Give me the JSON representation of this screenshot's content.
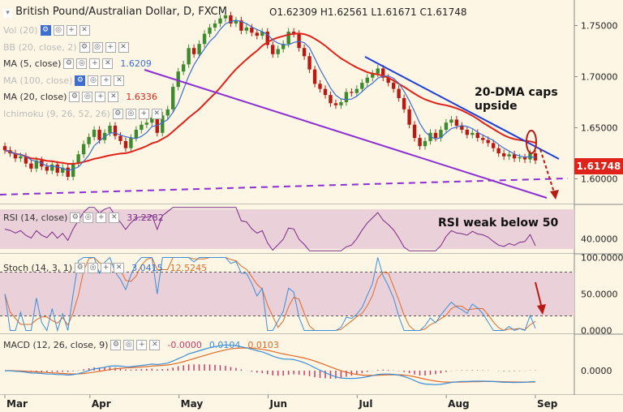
{
  "header": {
    "title": "British Pound/Australian Dollar, D, FXCM",
    "ohlc": "O1.62309  H1.62561  L1.61671  C1.61748"
  },
  "indicators": {
    "vol": {
      "label": "Vol (20)"
    },
    "bb": {
      "label": "BB (20, close, 2)"
    },
    "ma5": {
      "label": "MA (5, close)",
      "value": "1.6209"
    },
    "ma100": {
      "label": "MA (100, close)"
    },
    "ma20": {
      "label": "MA (20, close)",
      "value": "1.6336"
    },
    "ichimoku": {
      "label": "Ichimoku (9, 26, 52, 26)"
    },
    "rsi": {
      "label": "RSI (14, close)",
      "value": "33.2282"
    },
    "stoch": {
      "label": "Stoch (14, 3, 1)",
      "value1": "3.0415",
      "value2": "12.5245"
    },
    "macd": {
      "label": "MACD (12, 26, close, 9)",
      "value1": "-0.0000",
      "value2": "0.0104",
      "value3": "0.0103"
    }
  },
  "annotations": {
    "dma": "20-DMA caps\nupside",
    "rsi": "RSI weak below 50"
  },
  "last_price": "1.61748",
  "colors": {
    "background": "#fdf6e4",
    "up_candle": "#3f8a2e",
    "down_candle": "#b81a13",
    "ma5": "#3b6ed0",
    "ma20": "#e0231a",
    "trendline_blue": "#1f3fd6",
    "trendline_purple": "#8c2fd2",
    "rsi_line": "#7a2a8a",
    "rsi_band": "#ead0d8",
    "stoch_k": "#3b8fd9",
    "stoch_d": "#e06a2a",
    "macd_line": "#3b8fd9",
    "macd_signal": "#e06a2a",
    "macd_hist": "#c83a6a"
  },
  "chart_data": {
    "type": "candlestick",
    "title": "British Pound/Australian Dollar, D, FXCM",
    "x_tick_labels": [
      "Mar",
      "Apr",
      "May",
      "Jun",
      "Jul",
      "Aug",
      "Sep"
    ],
    "price_axis": {
      "ticks": [
        "1.75000",
        "1.70000",
        "1.65000",
        "1.60000"
      ],
      "range": [
        1.575,
        1.775
      ]
    },
    "rsi_axis": {
      "ticks": [
        "40.0000"
      ],
      "range": [
        25,
        75
      ],
      "band": [
        30,
        70
      ]
    },
    "stoch_axis": {
      "ticks": [
        "100.0000",
        "50.0000",
        "0.0000"
      ],
      "range": [
        -5,
        105
      ],
      "band": [
        20,
        80
      ]
    },
    "macd_axis": {
      "ticks": [
        "0.0000"
      ],
      "range": [
        -0.03,
        0.045
      ]
    },
    "close_series": [
      1.628,
      1.625,
      1.62,
      1.622,
      1.615,
      1.61,
      1.618,
      1.612,
      1.608,
      1.614,
      1.606,
      1.611,
      1.602,
      1.615,
      1.624,
      1.634,
      1.641,
      1.648,
      1.638,
      1.645,
      1.652,
      1.642,
      1.637,
      1.63,
      1.64,
      1.648,
      1.653,
      1.655,
      1.66,
      1.645,
      1.662,
      1.668,
      1.69,
      1.705,
      1.712,
      1.728,
      1.722,
      1.732,
      1.742,
      1.748,
      1.752,
      1.757,
      1.76,
      1.752,
      1.755,
      1.745,
      1.748,
      1.743,
      1.74,
      1.744,
      1.731,
      1.722,
      1.727,
      1.732,
      1.744,
      1.742,
      1.728,
      1.72,
      1.707,
      1.693,
      1.688,
      1.682,
      1.674,
      1.672,
      1.675,
      1.685,
      1.684,
      1.688,
      1.694,
      1.699,
      1.703,
      1.708,
      1.699,
      1.694,
      1.688,
      1.679,
      1.668,
      1.653,
      1.64,
      1.632,
      1.637,
      1.645,
      1.64,
      1.648,
      1.655,
      1.658,
      1.652,
      1.648,
      1.643,
      1.645,
      1.64,
      1.638,
      1.635,
      1.63,
      1.625,
      1.622,
      1.624,
      1.62,
      1.621,
      1.619,
      1.625,
      1.618
    ],
    "ma5_value": 1.6209,
    "ma20_value": 1.6336,
    "last": 1.61748,
    "rsi_value": 33.2282,
    "stoch_values": [
      3.0415,
      12.5245
    ],
    "macd_values": [
      -0.0,
      0.0104,
      0.0103
    ]
  }
}
